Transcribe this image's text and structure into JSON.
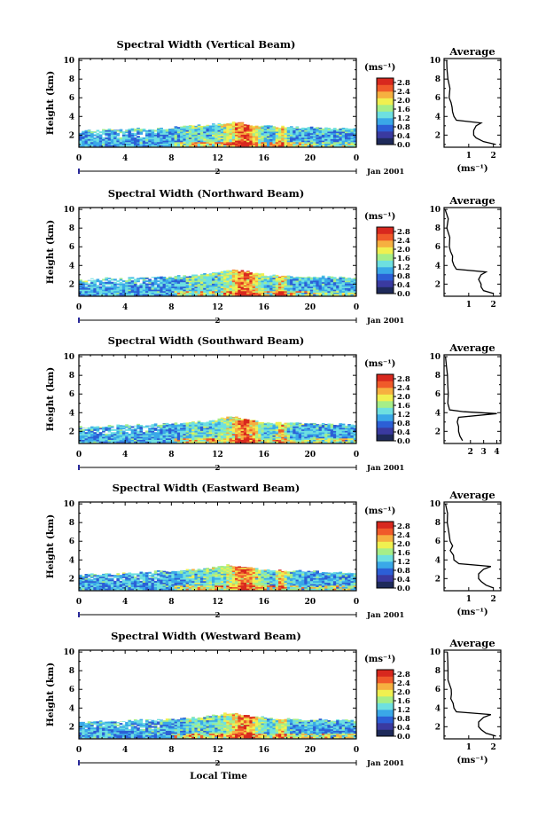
{
  "figure": {
    "xlabel": "Local Time",
    "date_label": "Jan 2001",
    "day_label": "2",
    "colorbar_unit": "(ms⁻¹)",
    "colorbar_ticks": [
      "2.8",
      "2.4",
      "2.0",
      "1.6",
      "1.2",
      "0.8",
      "0.4",
      "0.0"
    ],
    "colors": {
      "colormap": [
        "#1e2a5a",
        "#3a3aa0",
        "#2c5fd6",
        "#3aa8e8",
        "#6ee0e0",
        "#a6ee88",
        "#f0f050",
        "#f6b040",
        "#f05a2a",
        "#d8281e"
      ]
    }
  },
  "chart_data": [
    {
      "type": "heatmap",
      "title": "Spectral Width (Vertical Beam)",
      "ylabel": "Height (km)",
      "xticks": [
        "0",
        "4",
        "8",
        "12",
        "16",
        "20",
        "0"
      ],
      "yticks": [
        "2",
        "4",
        "6",
        "8",
        "10"
      ],
      "xlim": [
        0,
        24
      ],
      "ylim": [
        0.7,
        10.2
      ],
      "zlim": [
        0.0,
        3.0
      ],
      "echo_top_km": [
        2.5,
        2.5,
        2.6,
        2.6,
        2.6,
        2.7,
        2.6,
        2.7,
        2.8,
        2.9,
        3.0,
        3.1,
        3.2,
        3.4,
        3.3,
        3.1,
        3.0,
        2.9,
        2.9,
        2.8,
        2.8,
        2.8,
        2.7,
        2.7,
        2.7
      ],
      "average_profile": {
        "title": "Average",
        "xlabel": "(ms⁻¹)",
        "xticks": [
          "1",
          "2"
        ],
        "xlim": [
          0,
          2.3
        ],
        "height_km": [
          1.0,
          1.3,
          1.7,
          2.0,
          2.5,
          3.0,
          3.3,
          3.6,
          4.0,
          4.5,
          5.0,
          5.5,
          6.0,
          7.0,
          8.0,
          9.0,
          10.0
        ],
        "width_ms": [
          2.1,
          1.6,
          1.3,
          1.2,
          1.2,
          1.3,
          1.5,
          0.5,
          0.4,
          0.35,
          0.3,
          0.3,
          0.2,
          0.2,
          0.15,
          0.15,
          0.1
        ]
      }
    },
    {
      "type": "heatmap",
      "title": "Spectral Width (Northward Beam)",
      "ylabel": "Height (km)",
      "xticks": [
        "0",
        "4",
        "8",
        "12",
        "16",
        "20",
        "0"
      ],
      "yticks": [
        "2",
        "4",
        "6",
        "8",
        "10"
      ],
      "xlim": [
        0,
        24
      ],
      "ylim": [
        0.7,
        10.2
      ],
      "zlim": [
        0.0,
        3.0
      ],
      "echo_top_km": [
        2.4,
        2.5,
        2.6,
        2.6,
        2.7,
        2.7,
        2.7,
        2.8,
        2.8,
        2.9,
        3.0,
        3.1,
        3.3,
        3.5,
        3.4,
        3.2,
        3.0,
        2.9,
        2.9,
        2.8,
        2.8,
        2.8,
        2.7,
        2.7,
        2.7
      ],
      "average_profile": {
        "title": "Average",
        "xlabel": "",
        "xticks": [
          "1",
          "2"
        ],
        "xlim": [
          0,
          2.3
        ],
        "height_km": [
          1.0,
          1.3,
          1.7,
          2.0,
          2.5,
          3.0,
          3.3,
          3.6,
          4.0,
          4.5,
          5.0,
          5.5,
          6.0,
          7.0,
          8.0,
          9.0,
          10.0
        ],
        "width_ms": [
          2.0,
          1.6,
          1.5,
          1.5,
          1.4,
          1.5,
          1.7,
          0.5,
          0.4,
          0.35,
          0.3,
          0.3,
          0.25,
          0.2,
          0.15,
          0.15,
          0.1
        ]
      }
    },
    {
      "type": "heatmap",
      "title": "Spectral Width (Southward Beam)",
      "ylabel": "Height (km)",
      "xticks": [
        "0",
        "4",
        "8",
        "12",
        "16",
        "20",
        "0"
      ],
      "yticks": [
        "2",
        "4",
        "6",
        "8",
        "10"
      ],
      "xlim": [
        0,
        24
      ],
      "ylim": [
        0.7,
        10.2
      ],
      "zlim": [
        0.0,
        3.0
      ],
      "echo_top_km": [
        2.5,
        2.5,
        2.6,
        2.6,
        2.7,
        2.7,
        2.7,
        2.8,
        2.8,
        2.9,
        3.0,
        3.1,
        3.3,
        3.6,
        3.4,
        3.2,
        3.0,
        2.9,
        2.9,
        2.9,
        2.8,
        2.8,
        2.8,
        2.7,
        2.7
      ],
      "average_profile": {
        "title": "Average",
        "xlabel": "",
        "xticks": [
          "2",
          "3",
          "4"
        ],
        "xlim": [
          0,
          4.3
        ],
        "height_km": [
          1.0,
          1.5,
          2.0,
          2.5,
          3.0,
          3.5,
          3.9,
          4.1,
          4.3,
          4.6,
          5.0,
          6.0,
          7.0,
          8.0,
          9.0,
          10.0
        ],
        "width_ms": [
          1.4,
          1.2,
          1.1,
          1.1,
          1.0,
          1.1,
          4.0,
          1.5,
          0.4,
          0.35,
          0.3,
          0.3,
          0.25,
          0.2,
          0.15,
          0.1
        ]
      }
    },
    {
      "type": "heatmap",
      "title": "Spectral Width (Eastward Beam)",
      "ylabel": "Height (km)",
      "xticks": [
        "0",
        "4",
        "8",
        "12",
        "16",
        "20",
        "0"
      ],
      "yticks": [
        "2",
        "4",
        "6",
        "8",
        "10"
      ],
      "xlim": [
        0,
        24
      ],
      "ylim": [
        0.7,
        10.2
      ],
      "zlim": [
        0.0,
        3.0
      ],
      "echo_top_km": [
        2.4,
        2.5,
        2.5,
        2.6,
        2.6,
        2.7,
        2.7,
        2.8,
        2.8,
        2.9,
        3.0,
        3.1,
        3.3,
        3.5,
        3.3,
        3.1,
        3.0,
        2.9,
        2.8,
        2.8,
        2.8,
        2.7,
        2.7,
        2.6,
        2.6
      ],
      "average_profile": {
        "title": "Average",
        "xlabel": "(ms⁻¹)",
        "xticks": [
          "1",
          "2"
        ],
        "xlim": [
          0,
          2.3
        ],
        "height_km": [
          1.0,
          1.3,
          1.7,
          2.0,
          2.5,
          3.0,
          3.3,
          3.6,
          4.0,
          4.5,
          5.0,
          5.5,
          6.0,
          7.0,
          8.0,
          9.0,
          10.0
        ],
        "width_ms": [
          2.0,
          1.7,
          1.5,
          1.4,
          1.4,
          1.6,
          1.9,
          0.6,
          0.4,
          0.35,
          0.3,
          0.3,
          0.25,
          0.2,
          0.15,
          0.15,
          0.1
        ]
      }
    },
    {
      "type": "heatmap",
      "title": "Spectral Width (Westward Beam)",
      "ylabel": "Height (km)",
      "xticks": [
        "0",
        "4",
        "8",
        "12",
        "16",
        "20",
        "0"
      ],
      "yticks": [
        "2",
        "4",
        "6",
        "8",
        "10"
      ],
      "xlim": [
        0,
        24
      ],
      "ylim": [
        0.7,
        10.2
      ],
      "zlim": [
        0.0,
        3.0
      ],
      "echo_top_km": [
        2.5,
        2.5,
        2.6,
        2.6,
        2.6,
        2.7,
        2.7,
        2.8,
        2.8,
        2.9,
        3.0,
        3.1,
        3.3,
        3.5,
        3.3,
        3.1,
        3.0,
        2.9,
        2.9,
        2.8,
        2.8,
        2.8,
        2.7,
        2.7,
        2.7
      ],
      "average_profile": {
        "title": "Average",
        "xlabel": "(ms⁻¹)",
        "xticks": [
          "1",
          "2"
        ],
        "xlim": [
          0,
          2.3
        ],
        "height_km": [
          1.0,
          1.3,
          1.7,
          2.0,
          2.5,
          3.0,
          3.3,
          3.6,
          4.0,
          4.5,
          5.0,
          5.5,
          6.0,
          7.0,
          8.0,
          9.0,
          10.0
        ],
        "width_ms": [
          2.1,
          1.7,
          1.5,
          1.4,
          1.4,
          1.6,
          1.9,
          0.5,
          0.4,
          0.35,
          0.3,
          0.3,
          0.25,
          0.2,
          0.15,
          0.15,
          0.1
        ]
      }
    }
  ]
}
